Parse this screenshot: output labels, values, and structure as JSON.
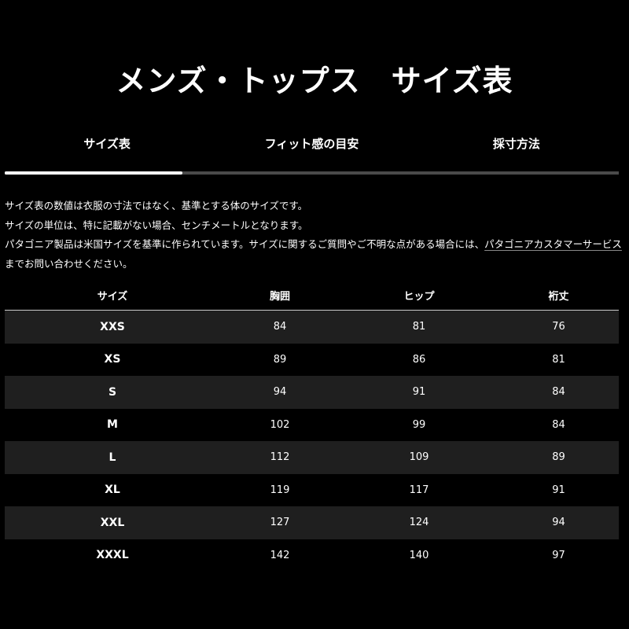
{
  "title": "メンズ・トップス　サイズ表",
  "tabs": [
    {
      "label": "サイズ表",
      "active": true
    },
    {
      "label": "フィット感の目安",
      "active": false
    },
    {
      "label": "採寸方法",
      "active": false
    }
  ],
  "tab_progress_percent": 29,
  "notes": {
    "line1": "サイズ表の数値は衣服の寸法ではなく、基準とする体のサイズです。",
    "line2": "サイズの単位は、特に記載がない場合、センチメートルとなります。",
    "line3_pre": "パタゴニア製品は米国サイズを基準に作られています。サイズに関するご質問やご不明な点がある場合には、",
    "link": "パタゴニアカスタマーサービス",
    "line3_post": "までお問い合わせください。"
  },
  "table": {
    "headers": [
      "サイズ",
      "胸囲",
      "ヒップ",
      "裄丈"
    ],
    "rows": [
      [
        "XXS",
        "84",
        "81",
        "76"
      ],
      [
        "XS",
        "89",
        "86",
        "81"
      ],
      [
        "S",
        "94",
        "91",
        "84"
      ],
      [
        "M",
        "102",
        "99",
        "84"
      ],
      [
        "L",
        "112",
        "109",
        "89"
      ],
      [
        "XL",
        "119",
        "117",
        "91"
      ],
      [
        "XXL",
        "127",
        "124",
        "94"
      ],
      [
        "XXXL",
        "142",
        "140",
        "97"
      ]
    ]
  }
}
